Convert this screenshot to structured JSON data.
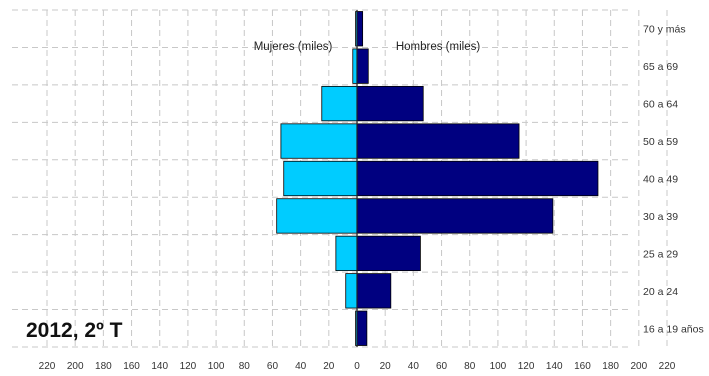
{
  "chart_data": {
    "type": "bar",
    "orientation": "horizontal-population-pyramid",
    "period_label": "2012, 2º T",
    "categories": [
      "16 a 19 años",
      "20 a 24",
      "25 a 29",
      "30 a 39",
      "40 a 49",
      "50 a 59",
      "60 a 64",
      "65 a 69",
      "70 y más"
    ],
    "series": [
      {
        "name": "Mujeres (miles)",
        "side": "left",
        "color": "#00CCFF",
        "values": [
          1,
          8,
          15,
          57,
          52,
          54,
          25,
          3,
          1
        ]
      },
      {
        "name": "Hombres (miles)",
        "side": "right",
        "color": "#000080",
        "values": [
          7,
          24,
          45,
          139,
          171,
          115,
          47,
          8,
          4
        ]
      }
    ],
    "x_ticks": [
      "220",
      "200",
      "180",
      "160",
      "140",
      "120",
      "100",
      "80",
      "60",
      "40",
      "20",
      "0",
      "20",
      "40",
      "60",
      "80",
      "100",
      "120",
      "140",
      "160",
      "180",
      "200",
      "220"
    ],
    "xlim": [
      -220,
      220
    ],
    "grid": true
  }
}
